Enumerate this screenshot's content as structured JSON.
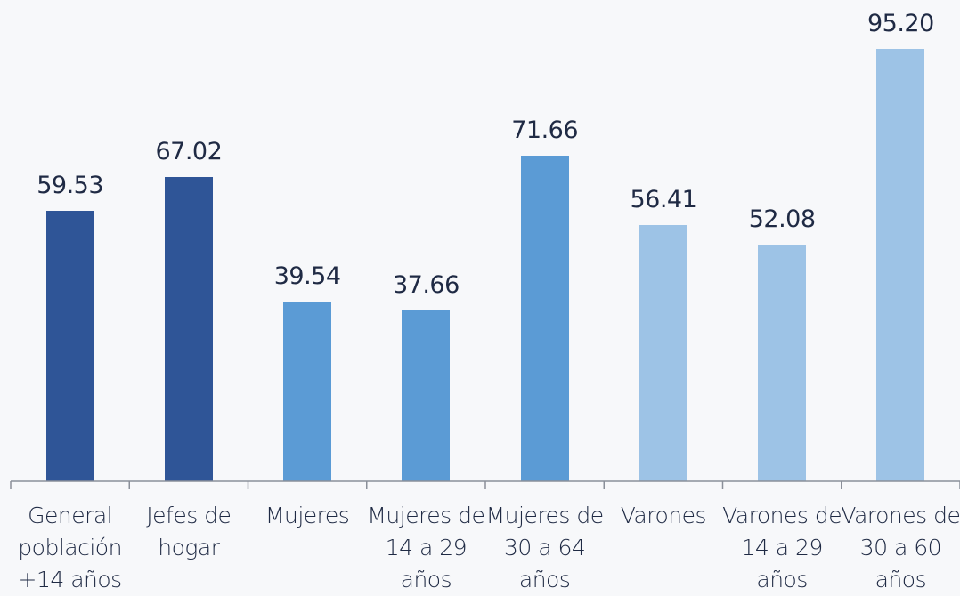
{
  "chart_data": {
    "type": "bar",
    "categories": [
      "General población +14 años",
      "Jefes de hogar",
      "Mujeres",
      "Mujeres de 14 a 29 años",
      "Mujeres de 30 a 64 años",
      "Varones",
      "Varones de 14 a 29 años",
      "Varones de 30 a 60 años"
    ],
    "values": [
      59.53,
      67.02,
      39.54,
      37.66,
      71.66,
      56.41,
      52.08,
      95.2
    ],
    "value_labels": [
      "59.53",
      "67.02",
      "39.54",
      "37.66",
      "71.66",
      "56.41",
      "52.08",
      "95.20"
    ],
    "colors": [
      "#2f5597",
      "#2f5597",
      "#5b9bd5",
      "#5b9bd5",
      "#5b9bd5",
      "#9dc3e6",
      "#9dc3e6",
      "#9dc3e6"
    ],
    "ylim": [
      0,
      106
    ]
  }
}
